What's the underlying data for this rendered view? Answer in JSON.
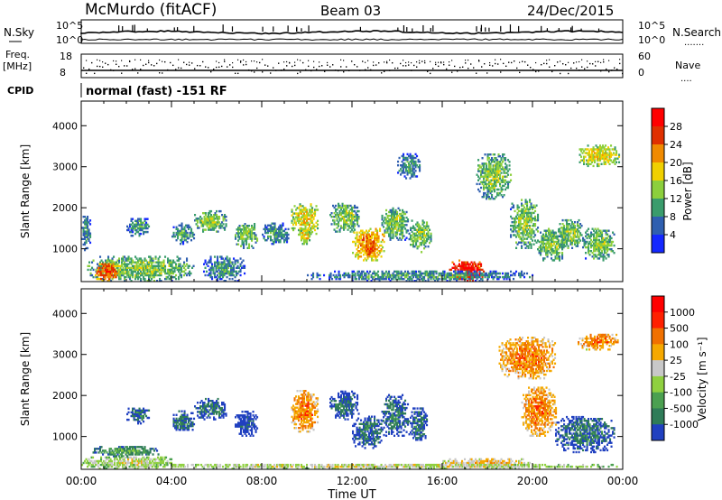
{
  "header": {
    "station": "McMurdo (fitACF)",
    "beam": "Beam 03",
    "date": "24/Dec/2015"
  },
  "noise_panel": {
    "left_label": "N.Sky",
    "right_label": "N.Search",
    "left_ticks": [
      "10^5",
      "10^0"
    ],
    "right_ticks": [
      "10^5",
      "10^0"
    ]
  },
  "freq_panel": {
    "left_label_line1": "Freq.",
    "left_label_line2": "[MHz]",
    "right_label": "Nave",
    "left_ticks": [
      "18",
      "8"
    ],
    "right_ticks": [
      "60",
      "0"
    ]
  },
  "cpid": {
    "label": "CPID",
    "value": "normal (fast) -151 RF"
  },
  "x_axis": {
    "title": "Time UT",
    "ticks": [
      "00:00",
      "04:00",
      "08:00",
      "12:00",
      "16:00",
      "20:00",
      "00:00"
    ]
  },
  "chart_data": [
    {
      "type": "heatmap",
      "name": "power",
      "ylabel": "Slant Range [km]",
      "yticks": [
        1000,
        2000,
        3000,
        4000
      ],
      "ylim": [
        200,
        4600
      ],
      "xlim": [
        0,
        24
      ],
      "colorbar": {
        "title": "Power [dB]",
        "tick_labels": [
          "4",
          "8",
          "12",
          "16",
          "20",
          "24",
          "28"
        ],
        "colors": [
          "#1428ff",
          "#2f5fb0",
          "#3a9c6c",
          "#8ccf3c",
          "#f0d000",
          "#f08a00",
          "#e03000",
          "#ff0000"
        ]
      },
      "clusters": [
        {
          "t": [
            0.0,
            0.4
          ],
          "r": [
            950,
            1800
          ],
          "level": 2
        },
        {
          "t": [
            0.2,
            5.0
          ],
          "r": [
            200,
            800
          ],
          "level": 3
        },
        {
          "t": [
            0.6,
            1.6
          ],
          "r": [
            200,
            650
          ],
          "level": 6
        },
        {
          "t": [
            2.0,
            3.0
          ],
          "r": [
            1300,
            1750
          ],
          "level": 2
        },
        {
          "t": [
            4.0,
            5.0
          ],
          "r": [
            1100,
            1600
          ],
          "level": 2
        },
        {
          "t": [
            5.0,
            6.4
          ],
          "r": [
            1400,
            1900
          ],
          "level": 3
        },
        {
          "t": [
            5.4,
            7.2
          ],
          "r": [
            200,
            800
          ],
          "level": 2
        },
        {
          "t": [
            6.8,
            7.8
          ],
          "r": [
            1000,
            1600
          ],
          "level": 3
        },
        {
          "t": [
            8.0,
            9.2
          ],
          "r": [
            1100,
            1600
          ],
          "level": 2
        },
        {
          "t": [
            9.3,
            10.5
          ],
          "r": [
            1300,
            2100
          ],
          "level": 4
        },
        {
          "t": [
            9.6,
            10.2
          ],
          "r": [
            1100,
            1500
          ],
          "level": 4
        },
        {
          "t": [
            11.0,
            12.3
          ],
          "r": [
            1400,
            2100
          ],
          "level": 3
        },
        {
          "t": [
            12.0,
            13.4
          ],
          "r": [
            700,
            1500
          ],
          "level": 5
        },
        {
          "t": [
            12.5,
            13.0
          ],
          "r": [
            800,
            1200
          ],
          "level": 6
        },
        {
          "t": [
            13.3,
            14.5
          ],
          "r": [
            1200,
            2000
          ],
          "level": 3
        },
        {
          "t": [
            14.0,
            15.0
          ],
          "r": [
            2700,
            3300
          ],
          "level": 2
        },
        {
          "t": [
            14.5,
            15.5
          ],
          "r": [
            900,
            1700
          ],
          "level": 3
        },
        {
          "t": [
            16.3,
            17.8
          ],
          "r": [
            200,
            700
          ],
          "level": 7
        },
        {
          "t": [
            17.5,
            19.0
          ],
          "r": [
            2200,
            3300
          ],
          "level": 3
        },
        {
          "t": [
            19.0,
            20.2
          ],
          "r": [
            1000,
            2200
          ],
          "level": 3
        },
        {
          "t": [
            20.2,
            21.4
          ],
          "r": [
            700,
            1500
          ],
          "level": 3
        },
        {
          "t": [
            21.0,
            22.2
          ],
          "r": [
            1000,
            1700
          ],
          "level": 3
        },
        {
          "t": [
            22.2,
            23.6
          ],
          "r": [
            700,
            1500
          ],
          "level": 3
        },
        {
          "t": [
            22.0,
            23.8
          ],
          "r": [
            3000,
            3500
          ],
          "level": 4
        },
        {
          "t": [
            10.0,
            20.0
          ],
          "r": [
            200,
            450
          ],
          "level": 2
        }
      ]
    },
    {
      "type": "heatmap",
      "name": "velocity",
      "ylabel": "Slant Range [km]",
      "yticks": [
        1000,
        2000,
        3000,
        4000
      ],
      "ylim": [
        200,
        4600
      ],
      "xlim": [
        0,
        24
      ],
      "colorbar": {
        "title": "Velocity [m s⁻¹]",
        "tick_labels": [
          "1000",
          "500",
          "100",
          "25",
          "-25",
          "-100",
          "-500",
          "-1000"
        ],
        "colors": [
          "#2040c0",
          "#2f7c58",
          "#4ba050",
          "#8fd040",
          "#c8c8c8",
          "#f5a800",
          "#f07000",
          "#ff2000",
          "#ff0000"
        ]
      },
      "clusters": [
        {
          "t": [
            0.0,
            4.0
          ],
          "r": [
            200,
            500
          ],
          "level": 4
        },
        {
          "t": [
            0.5,
            3.5
          ],
          "r": [
            500,
            750
          ],
          "level": 2
        },
        {
          "t": [
            2.0,
            3.0
          ],
          "r": [
            1300,
            1700
          ],
          "level": 1
        },
        {
          "t": [
            4.0,
            5.0
          ],
          "r": [
            1100,
            1600
          ],
          "level": 1
        },
        {
          "t": [
            5.0,
            6.4
          ],
          "r": [
            1400,
            1900
          ],
          "level": 1
        },
        {
          "t": [
            6.8,
            7.8
          ],
          "r": [
            1000,
            1600
          ],
          "level": 0
        },
        {
          "t": [
            9.3,
            10.5
          ],
          "r": [
            1100,
            2100
          ],
          "level": 6
        },
        {
          "t": [
            11.0,
            12.3
          ],
          "r": [
            1400,
            2100
          ],
          "level": 1
        },
        {
          "t": [
            12.0,
            13.4
          ],
          "r": [
            700,
            1500
          ],
          "level": 1
        },
        {
          "t": [
            13.3,
            14.5
          ],
          "r": [
            1000,
            2000
          ],
          "level": 1
        },
        {
          "t": [
            14.5,
            15.3
          ],
          "r": [
            900,
            1700
          ],
          "level": 1
        },
        {
          "t": [
            16.0,
            20.0
          ],
          "r": [
            200,
            450
          ],
          "level": 5
        },
        {
          "t": [
            18.5,
            21.0
          ],
          "r": [
            2400,
            3400
          ],
          "level": 6
        },
        {
          "t": [
            19.5,
            21.0
          ],
          "r": [
            1000,
            2200
          ],
          "level": 6
        },
        {
          "t": [
            21.0,
            23.6
          ],
          "r": [
            600,
            1500
          ],
          "level": 1
        },
        {
          "t": [
            22.0,
            23.8
          ],
          "r": [
            3100,
            3500
          ],
          "level": 6
        },
        {
          "t": [
            0.0,
            24.0
          ],
          "r": [
            200,
            320
          ],
          "level": 4
        }
      ]
    }
  ]
}
